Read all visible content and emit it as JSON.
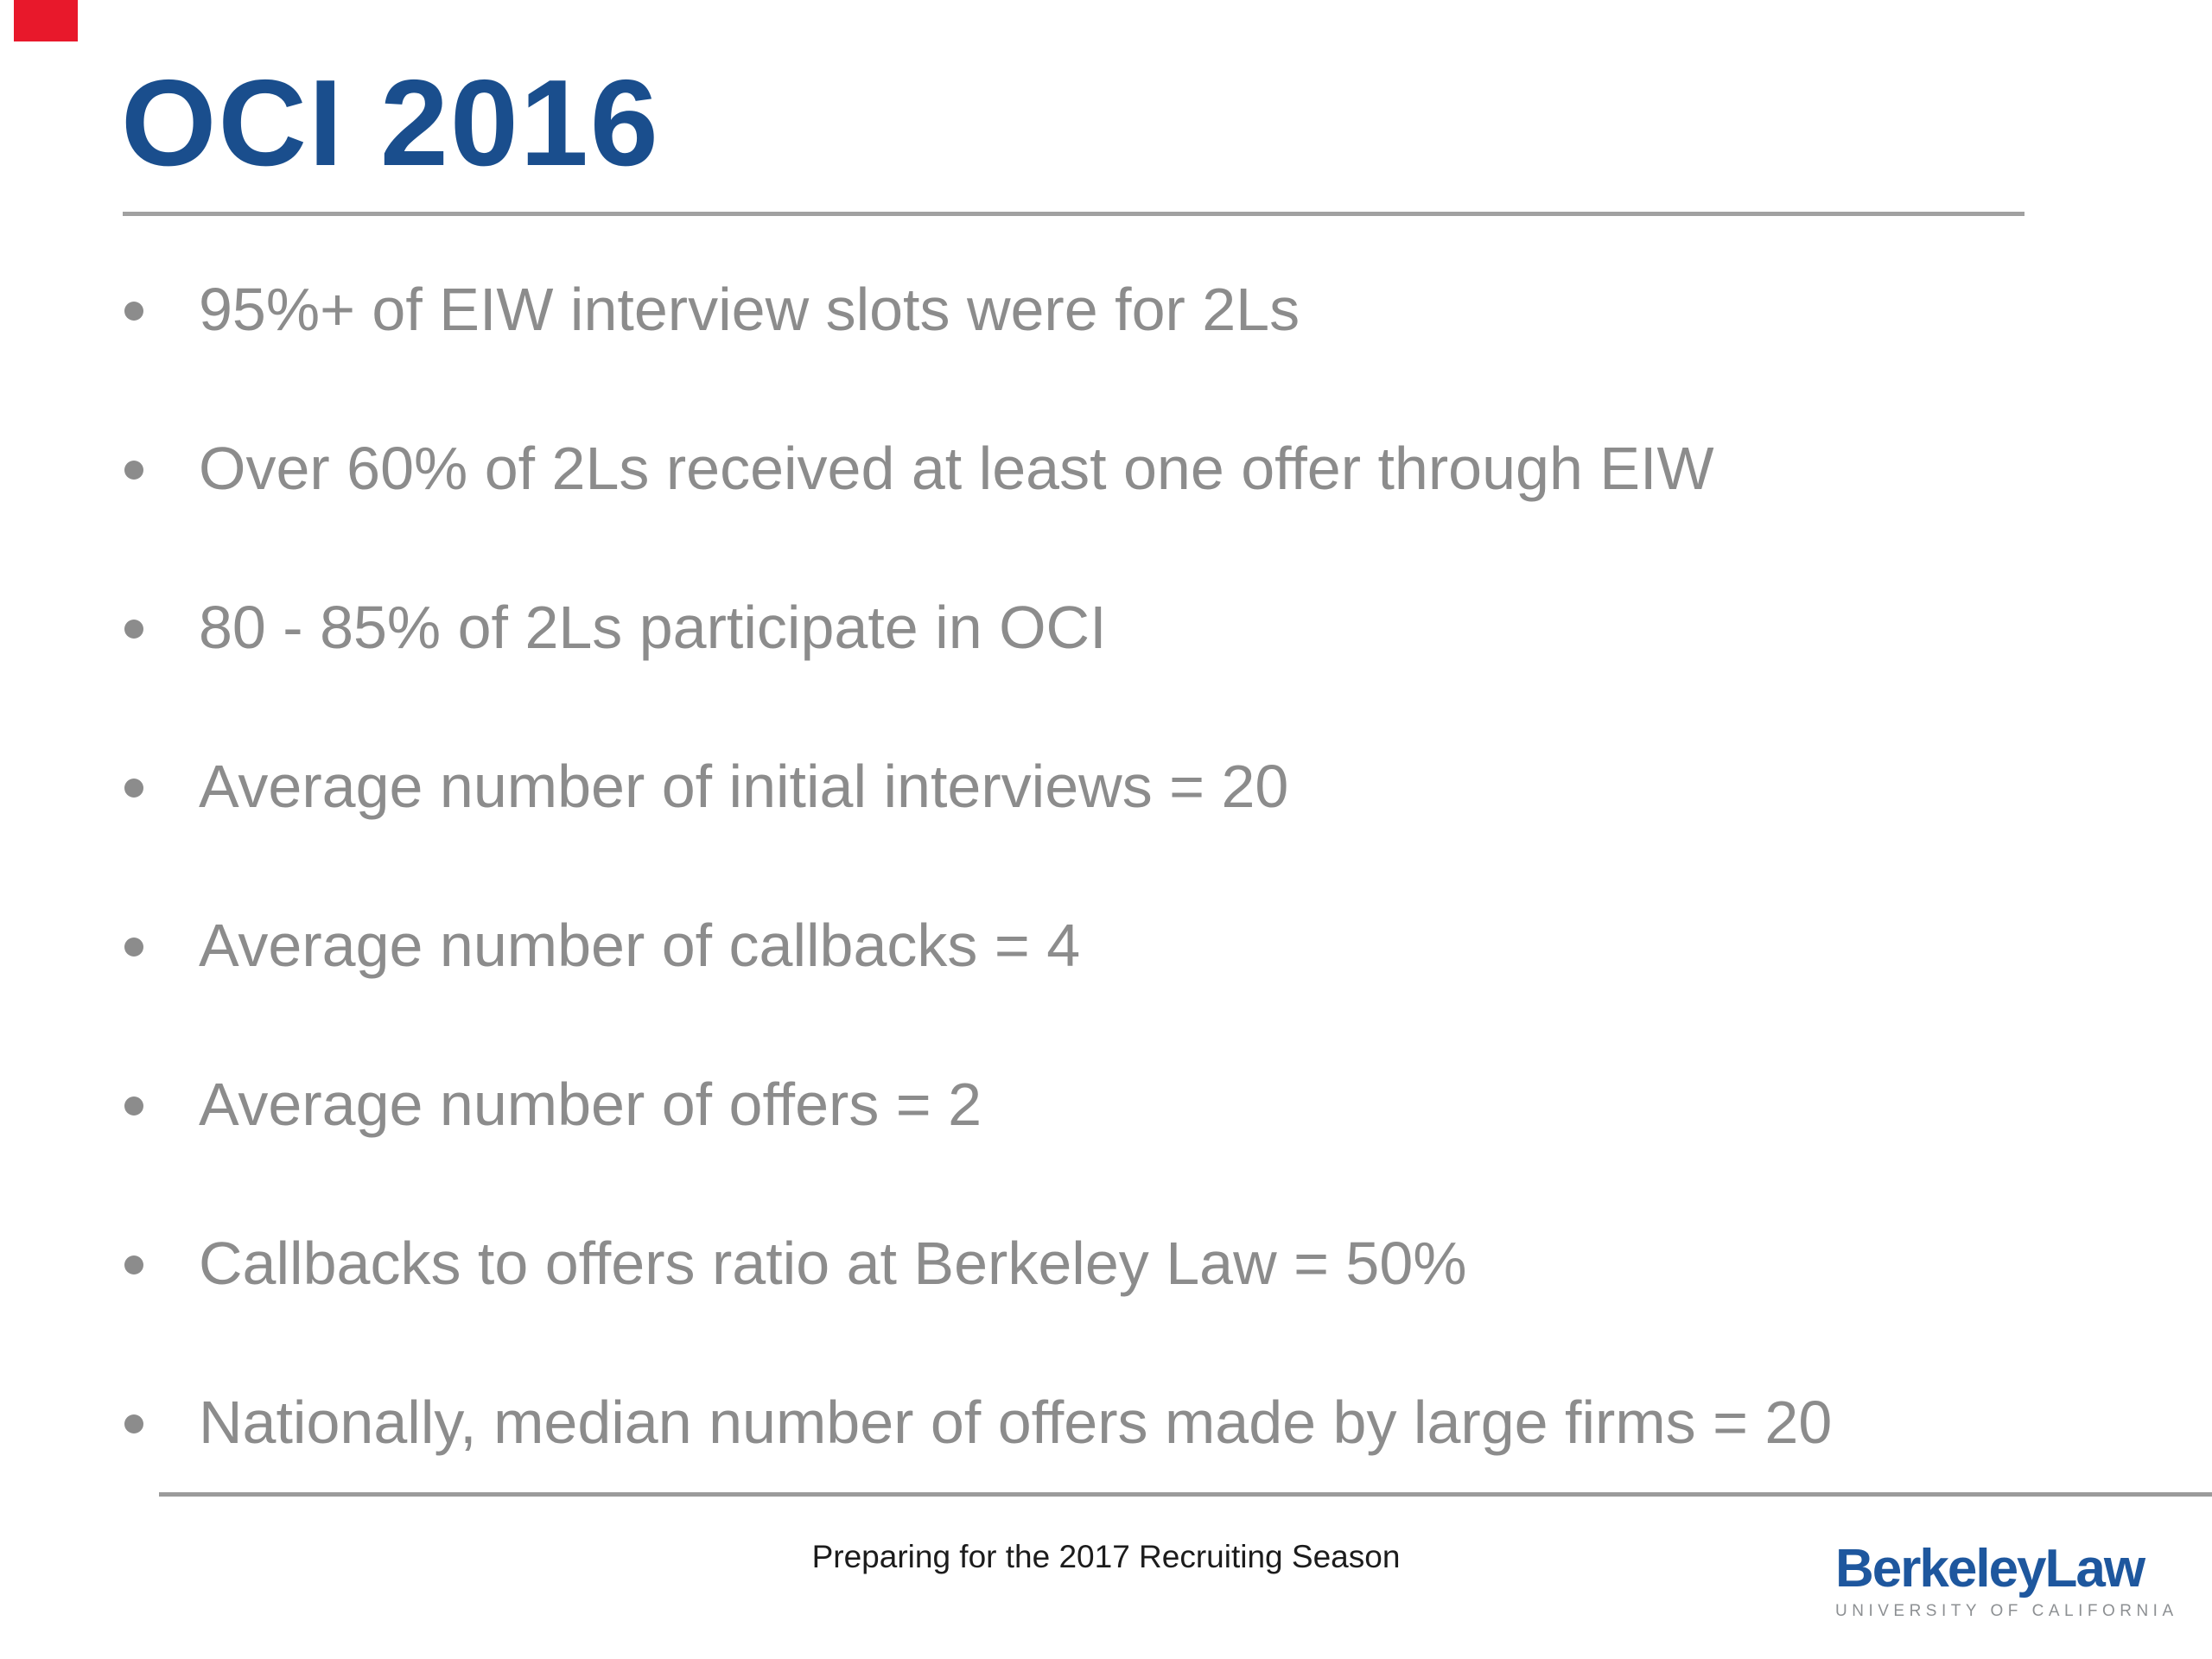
{
  "slide": {
    "title": "OCI 2016",
    "bullets": [
      "95%+ of EIW interview slots were for 2Ls",
      "Over 60% of 2Ls received at least one offer through EIW",
      "80 - 85% of 2Ls participate in OCI",
      "Average number of initial interviews = 20",
      "Average number of callbacks = 4",
      "Average number of offers = 2",
      "Callbacks to offers ratio at Berkeley Law = 50%",
      "Nationally, median number of offers made by large firms = 20"
    ],
    "footer": "Preparing for the 2017 Recruiting Season",
    "logo": {
      "wordmark": "BerkeleyLaw",
      "tagline": "UNIVERSITY OF CALIFORNIA"
    },
    "colors": {
      "title_blue": "#1a4e8d",
      "logo_blue": "#1e579e",
      "bullet_gray": "#8c8c8c",
      "rule_gray": "#a1a1a1",
      "footer_text": "#1c1c1c",
      "tagline_gray": "#8d9093",
      "marker_red": "#e8182b"
    }
  }
}
